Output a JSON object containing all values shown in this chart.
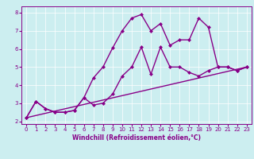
{
  "xlabel": "Windchill (Refroidissement éolien,°C)",
  "bg_color": "#cceef0",
  "line_color": "#880088",
  "grid_color": "#ffffff",
  "xlim": [
    -0.5,
    23.5
  ],
  "ylim": [
    1.85,
    8.35
  ],
  "xticks": [
    0,
    1,
    2,
    3,
    4,
    5,
    6,
    7,
    8,
    9,
    10,
    11,
    12,
    13,
    14,
    15,
    16,
    17,
    18,
    19,
    20,
    21,
    22,
    23
  ],
  "yticks": [
    2,
    3,
    4,
    5,
    6,
    7,
    8
  ],
  "line1_x": [
    0,
    1,
    2,
    3,
    4,
    5,
    6,
    7,
    8,
    9,
    10,
    11,
    12,
    13,
    14,
    15,
    16,
    17,
    18,
    19,
    20,
    21,
    22,
    23
  ],
  "line1_y": [
    2.2,
    3.1,
    2.7,
    2.5,
    2.5,
    2.6,
    3.3,
    2.9,
    3.0,
    3.5,
    4.5,
    5.0,
    6.1,
    4.6,
    6.1,
    5.0,
    5.0,
    4.7,
    4.5,
    4.8,
    5.0,
    5.0,
    4.8,
    5.0
  ],
  "line2_x": [
    0,
    1,
    2,
    3,
    4,
    5,
    6,
    7,
    8,
    9,
    10,
    11,
    12,
    13,
    14,
    15,
    16,
    17,
    18,
    19,
    20,
    21,
    22,
    23
  ],
  "line2_y": [
    2.2,
    3.1,
    2.7,
    2.5,
    2.5,
    2.6,
    3.3,
    4.4,
    5.0,
    6.05,
    7.0,
    7.7,
    7.9,
    7.0,
    7.4,
    6.2,
    6.5,
    6.5,
    7.7,
    7.2,
    5.0,
    5.0,
    4.8,
    5.0
  ],
  "line3_x": [
    0,
    23
  ],
  "line3_y": [
    2.2,
    5.0
  ],
  "marker": "D",
  "markersize": 2.5,
  "linewidth": 1.0,
  "tick_fontsize": 5.0,
  "xlabel_fontsize": 5.5
}
